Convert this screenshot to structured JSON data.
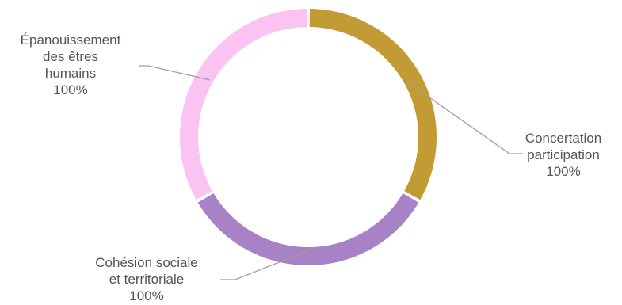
{
  "chart_data": {
    "type": "pie",
    "variant": "donut",
    "slices": [
      {
        "name_lines": [
          "Concertation",
          "participation"
        ],
        "value_label": "100%",
        "value": 100,
        "color": "#c29b35"
      },
      {
        "name_lines": [
          "Cohésion sociale",
          "et territoriale"
        ],
        "value_label": "100%",
        "value": 100,
        "color": "#a882c7"
      },
      {
        "name_lines": [
          "Épanouissement",
          "des êtres",
          "humains"
        ],
        "value_label": "100%",
        "value": 100,
        "color": "#fbc3f2"
      }
    ]
  }
}
